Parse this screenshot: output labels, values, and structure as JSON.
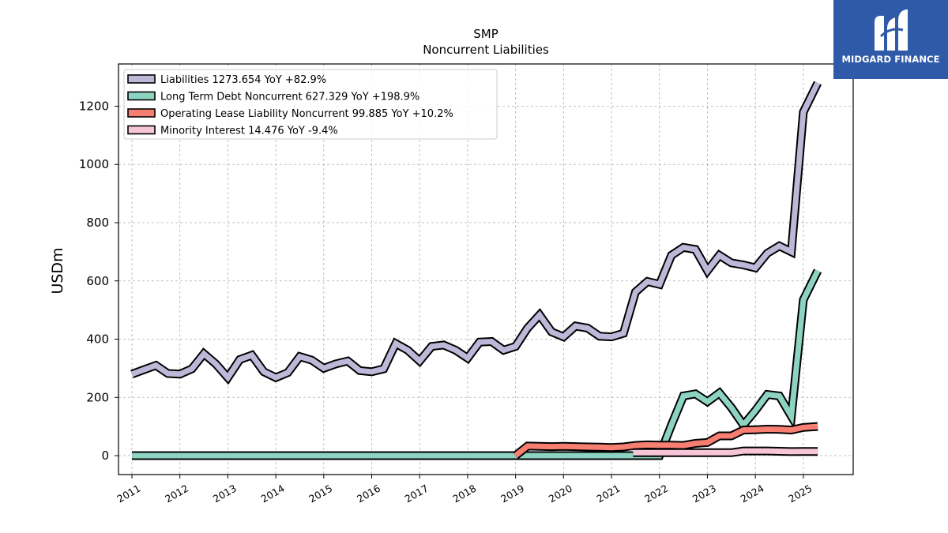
{
  "brand": {
    "name": "MIDGARD FINANCE",
    "logo_bg": "#2f5aa8",
    "logo_icon": "stylized-m-logo-icon"
  },
  "chart_data": {
    "type": "line",
    "title": "SMP",
    "subtitle": "Noncurrent  Liabilities",
    "xlabel": "",
    "ylabel": "USDm",
    "xlim": [
      2010.72,
      2026.04
    ],
    "ylim": [
      -65,
      1345
    ],
    "x_ticks": [
      "2011",
      "2012",
      "2013",
      "2014",
      "2015",
      "2016",
      "2017",
      "2018",
      "2019",
      "2020",
      "2021",
      "2022",
      "2023",
      "2024",
      "2025"
    ],
    "y_ticks": [
      0,
      200,
      400,
      600,
      800,
      1000,
      1200
    ],
    "grid": true,
    "legend_position": "top-left",
    "series": [
      {
        "name": "Liabilities",
        "legend_label": "Liabilities  1273.654 YoY +82.9%",
        "color": "#bcb8d8",
        "x": [
          2011.0,
          2011.25,
          2011.5,
          2011.75,
          2012.0,
          2012.25,
          2012.5,
          2012.75,
          2013.0,
          2013.25,
          2013.5,
          2013.75,
          2014.0,
          2014.25,
          2014.5,
          2014.75,
          2015.0,
          2015.25,
          2015.5,
          2015.75,
          2016.0,
          2016.25,
          2016.5,
          2016.75,
          2017.0,
          2017.25,
          2017.5,
          2017.75,
          2018.0,
          2018.25,
          2018.5,
          2018.75,
          2019.0,
          2019.25,
          2019.5,
          2019.75,
          2020.0,
          2020.25,
          2020.5,
          2020.75,
          2021.0,
          2021.25,
          2021.5,
          2021.75,
          2022.0,
          2022.25,
          2022.5,
          2022.75,
          2023.0,
          2023.25,
          2023.5,
          2023.75,
          2024.0,
          2024.25,
          2024.5,
          2024.75,
          2025.0,
          2025.3
        ],
        "values": [
          280,
          295,
          310,
          282,
          280,
          298,
          350,
          315,
          268,
          330,
          345,
          288,
          268,
          285,
          340,
          328,
          300,
          315,
          325,
          292,
          288,
          298,
          385,
          362,
          325,
          375,
          380,
          362,
          335,
          390,
          392,
          362,
          375,
          438,
          483,
          425,
          408,
          445,
          438,
          410,
          408,
          420,
          562,
          598,
          588,
          688,
          715,
          708,
          635,
          688,
          662,
          655,
          645,
          695,
          720,
          700,
          1180,
          1280
        ]
      },
      {
        "name": "Long Term Debt Noncurrent",
        "legend_label": "Long Term Debt Noncurrent  627.329 YoY +198.9%",
        "color": "#8dd3c1",
        "x": [
          2011.0,
          2011.5,
          2012.0,
          2012.5,
          2013.0,
          2013.5,
          2014.0,
          2014.5,
          2015.0,
          2015.5,
          2016.0,
          2016.5,
          2017.0,
          2017.5,
          2018.0,
          2018.5,
          2019.0,
          2019.5,
          2020.0,
          2020.5,
          2021.0,
          2021.5,
          2022.0,
          2022.25,
          2022.5,
          2022.75,
          2023.0,
          2023.25,
          2023.5,
          2023.75,
          2024.0,
          2024.25,
          2024.5,
          2024.75,
          2025.0,
          2025.3
        ],
        "values": [
          0,
          0,
          0,
          0,
          0,
          0,
          0,
          0,
          0,
          0,
          0,
          0,
          0,
          0,
          0,
          0,
          0,
          0,
          0,
          0,
          0,
          0,
          0,
          105,
          205,
          212,
          185,
          215,
          165,
          105,
          155,
          210,
          205,
          135,
          535,
          635
        ]
      },
      {
        "name": "Operating Lease Liability Noncurrent",
        "legend_label": "Operating Lease Liability Noncurrent  99.885 YoY +10.2%",
        "color": "#f77f72",
        "x": [
          2019.0,
          2019.25,
          2019.5,
          2019.75,
          2020.0,
          2020.25,
          2020.5,
          2020.75,
          2021.0,
          2021.25,
          2021.5,
          2021.75,
          2022.0,
          2022.25,
          2022.5,
          2022.75,
          2023.0,
          2023.25,
          2023.5,
          2023.75,
          2024.0,
          2024.25,
          2024.5,
          2024.75,
          2025.0,
          2025.3
        ],
        "values": [
          0,
          33,
          32,
          31,
          32,
          31,
          30,
          29,
          28,
          30,
          35,
          37,
          36,
          36,
          35,
          42,
          45,
          68,
          68,
          88,
          89,
          91,
          90,
          88,
          97,
          100
        ]
      },
      {
        "name": "Minority Interest",
        "legend_label": "Minority Interest  14.476 YoY -9.4%",
        "color": "#f6c5d7",
        "x": [
          2021.45,
          2021.75,
          2022.0,
          2022.25,
          2022.5,
          2022.75,
          2023.0,
          2023.25,
          2023.5,
          2023.75,
          2024.0,
          2024.25,
          2024.5,
          2024.75,
          2025.0,
          2025.3
        ],
        "values": [
          10,
          10,
          10,
          10,
          10,
          10,
          10,
          10,
          10,
          16,
          16,
          16,
          15,
          14,
          14.5,
          14.5
        ]
      }
    ]
  }
}
